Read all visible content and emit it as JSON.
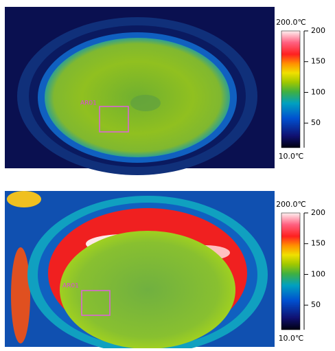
{
  "panels": [
    {
      "roi_label": "AR01",
      "scale": {
        "max_label": "200.0℃",
        "min_label": "10.0℃",
        "range": [
          10,
          200
        ],
        "ticks": [
          50,
          100,
          150,
          200
        ]
      }
    },
    {
      "roi_label": "AR01",
      "scale": {
        "max_label": "200.0℃",
        "min_label": "10.0℃",
        "range": [
          10,
          200
        ],
        "ticks": [
          50,
          100,
          150,
          200
        ]
      }
    }
  ]
}
